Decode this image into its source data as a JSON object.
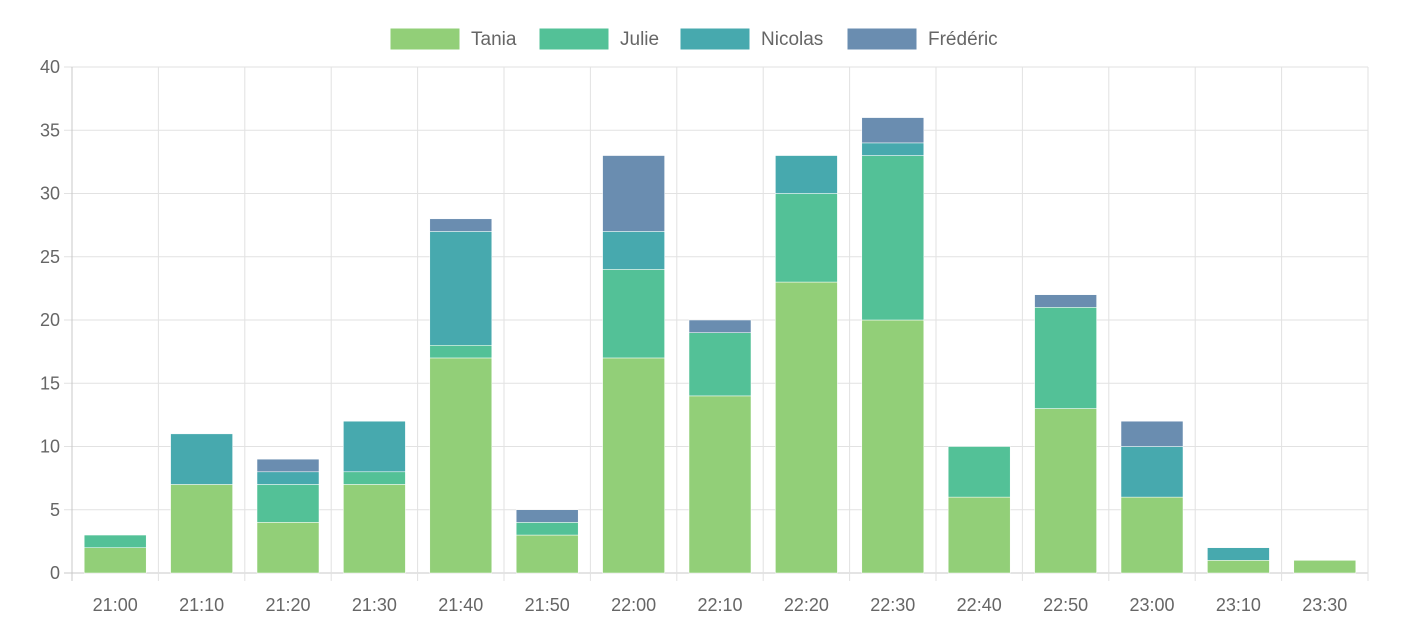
{
  "chart_data": {
    "type": "bar",
    "stacked": true,
    "title": "",
    "xlabel": "",
    "ylabel": "",
    "ylim": [
      0,
      40
    ],
    "yticks": [
      0,
      5,
      10,
      15,
      20,
      25,
      30,
      35,
      40
    ],
    "grid": true,
    "legend_position": "top",
    "categories": [
      "21:00",
      "21:10",
      "21:20",
      "21:30",
      "21:40",
      "21:50",
      "22:00",
      "22:10",
      "22:20",
      "22:30",
      "22:40",
      "22:50",
      "23:00",
      "23:10",
      "23:30"
    ],
    "series": [
      {
        "name": "Tania",
        "color": "#92cf78",
        "values": [
          2,
          7,
          4,
          7,
          17,
          3,
          17,
          14,
          23,
          20,
          6,
          13,
          6,
          1,
          1
        ]
      },
      {
        "name": "Julie",
        "color": "#53c197",
        "values": [
          1,
          0,
          3,
          1,
          1,
          1,
          7,
          5,
          7,
          13,
          4,
          8,
          0,
          0,
          0
        ]
      },
      {
        "name": "Nicolas",
        "color": "#47a9ae",
        "values": [
          0,
          4,
          1,
          4,
          9,
          0,
          3,
          0,
          3,
          1,
          0,
          0,
          4,
          1,
          0
        ]
      },
      {
        "name": "Frédéric",
        "color": "#6a8db0",
        "values": [
          0,
          0,
          1,
          0,
          1,
          1,
          6,
          1,
          0,
          2,
          0,
          1,
          2,
          0,
          0
        ]
      }
    ]
  }
}
